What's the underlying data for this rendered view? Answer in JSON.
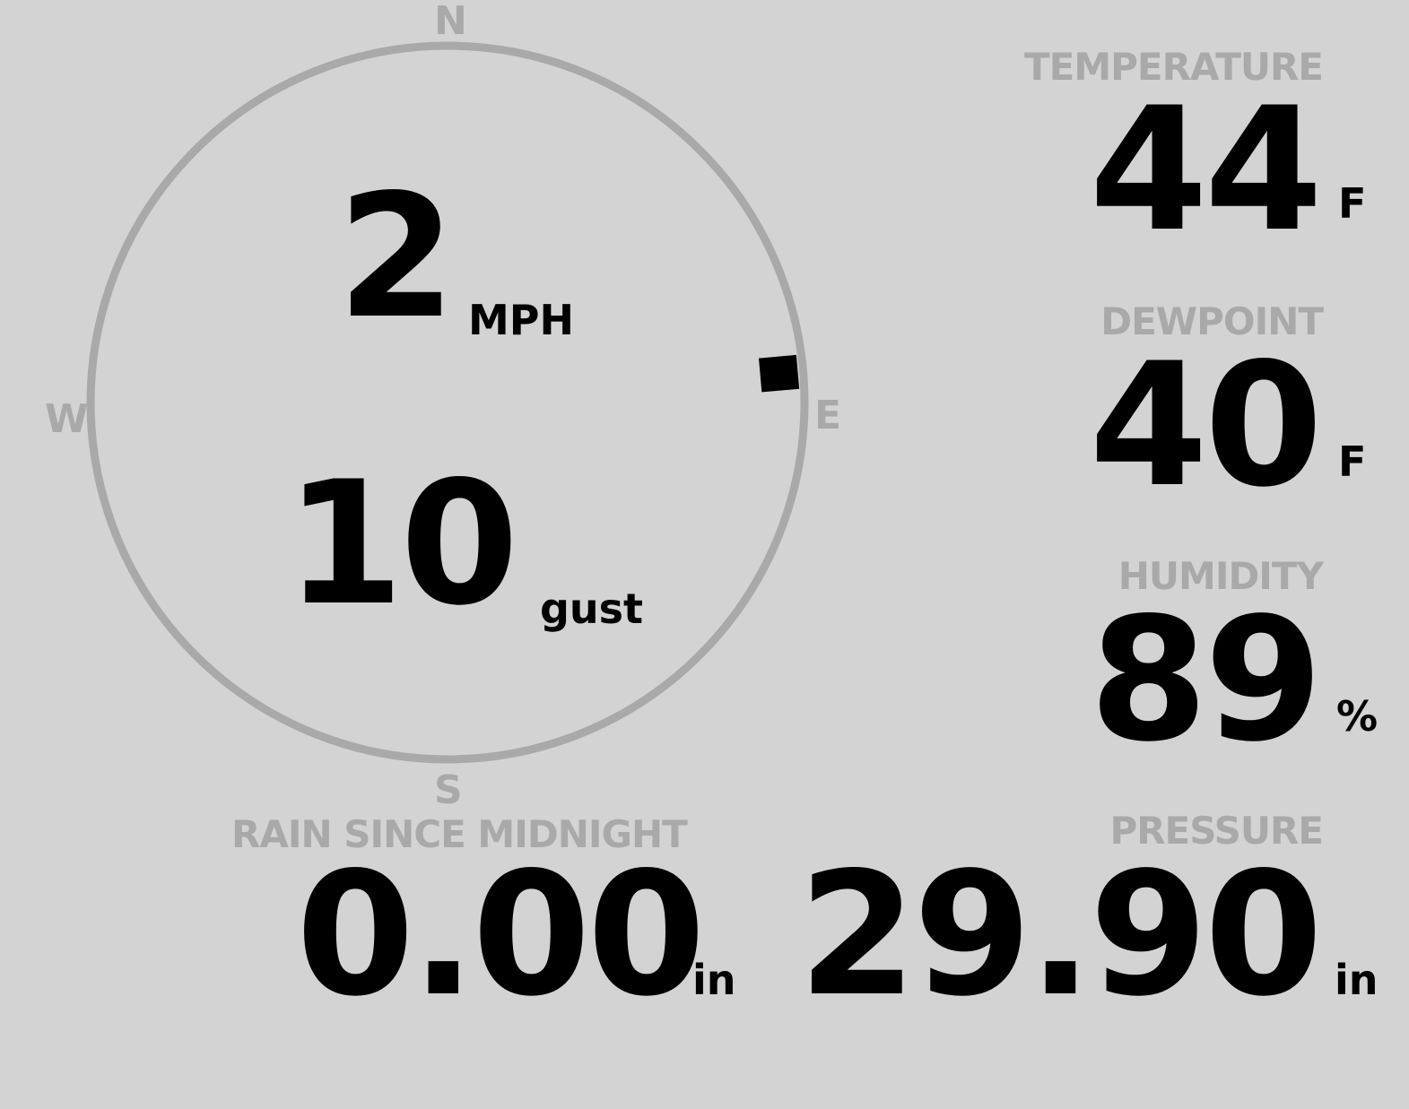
{
  "wind": {
    "speed": "2",
    "speed_unit": "MPH",
    "gust": "10",
    "gust_unit": "gust",
    "direction_deg": 85,
    "compass": {
      "n": "N",
      "e": "E",
      "s": "S",
      "w": "W"
    }
  },
  "temperature": {
    "label": "TEMPERATURE",
    "value": "44",
    "unit": "F"
  },
  "dewpoint": {
    "label": "DEWPOINT",
    "value": "40",
    "unit": "F"
  },
  "humidity": {
    "label": "HUMIDITY",
    "value": "89",
    "unit": "%"
  },
  "rain": {
    "label": "RAIN SINCE MIDNIGHT",
    "value": "0.00",
    "unit": "in"
  },
  "pressure": {
    "label": "PRESSURE",
    "value": "29.90",
    "unit": "in"
  },
  "colors": {
    "background": "#d3d3d3",
    "label": "#a9a9a9",
    "value": "#000000"
  }
}
